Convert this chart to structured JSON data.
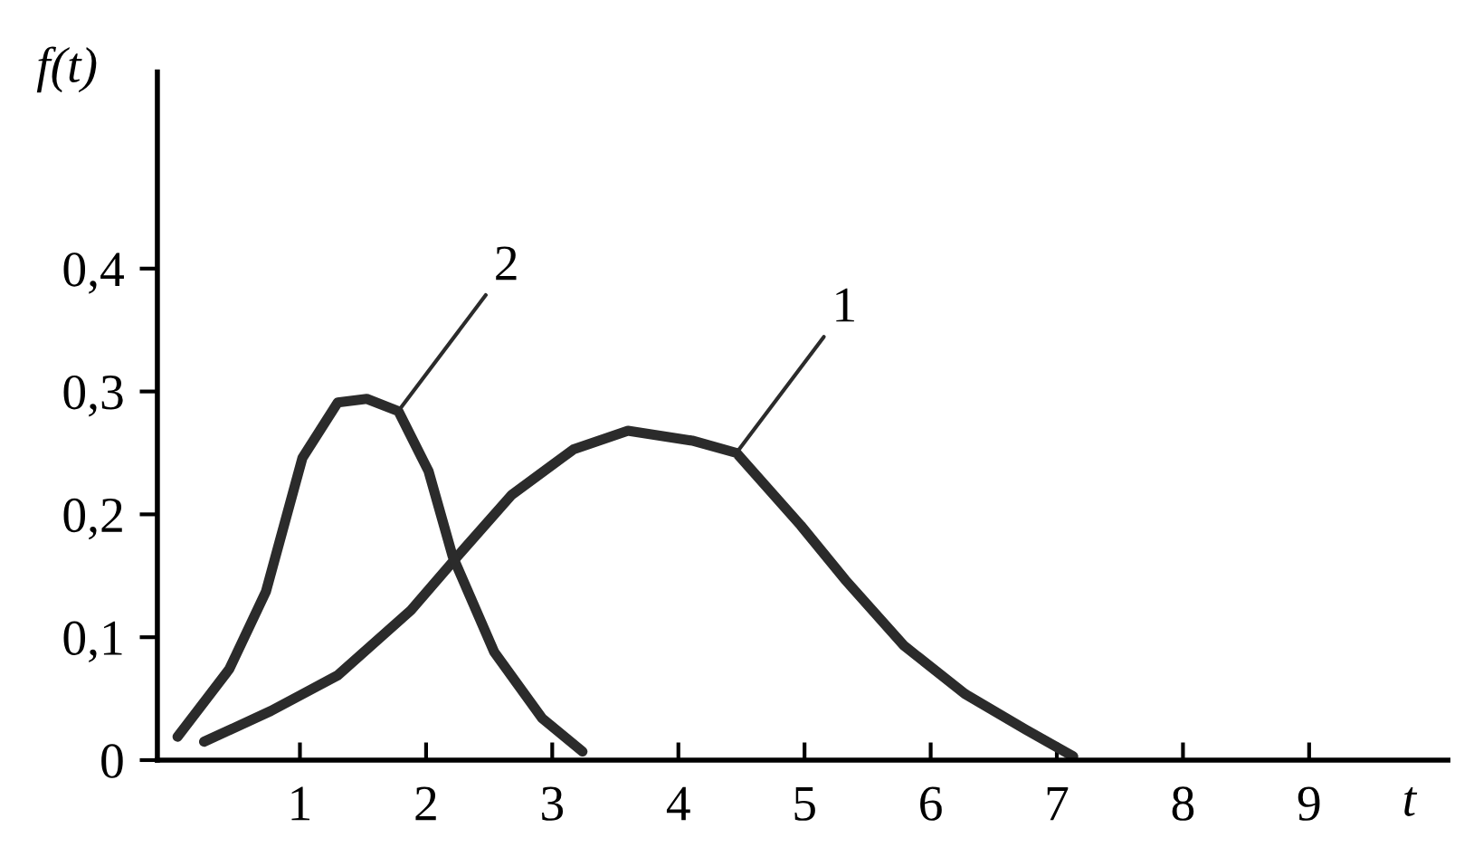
{
  "chart_data": {
    "type": "line",
    "xlabel": "t",
    "ylabel": "f(t)",
    "series": [
      {
        "color": "#2b2b2b",
        "x": [
          0.24,
          0.77,
          1.3,
          1.88,
          2.25,
          2.68,
          3.17,
          3.6,
          4.11,
          4.46,
          4.97,
          5.32,
          5.79,
          6.27,
          6.75,
          7.13
        ],
        "values": [
          0.015,
          0.04,
          0.069,
          0.122,
          0.166,
          0.216,
          0.253,
          0.268,
          0.26,
          0.25,
          0.191,
          0.147,
          0.093,
          0.054,
          0.025,
          0.003
        ]
      },
      {
        "color": "#2b2b2b",
        "x": [
          0.03,
          0.44,
          0.73,
          1.02,
          1.3,
          1.53,
          1.78,
          2.02,
          2.21,
          2.54,
          2.92,
          3.24
        ],
        "values": [
          0.019,
          0.074,
          0.137,
          0.246,
          0.291,
          0.294,
          0.284,
          0.235,
          0.166,
          0.088,
          0.034,
          0.007
        ]
      }
    ],
    "annotations": [
      {
        "text": "1",
        "x": 4.46,
        "y": 0.25
      },
      {
        "text": "2",
        "x": 1.78,
        "y": 0.284
      }
    ],
    "xlim": [
      -0.13,
      10.1
    ],
    "ylim": [
      0,
      0.56
    ],
    "xticks": [
      1,
      2,
      3,
      4,
      5,
      6,
      7,
      8,
      9
    ],
    "yticks": [
      {
        "value": 0,
        "label": "0"
      },
      {
        "value": 0.1,
        "label": "0,1"
      },
      {
        "value": 0.2,
        "label": "0,2"
      },
      {
        "value": 0.3,
        "label": "0,3"
      },
      {
        "value": 0.4,
        "label": "0,4"
      }
    ],
    "grid": false,
    "legend": false,
    "marker": "none",
    "line_style": "solid"
  }
}
